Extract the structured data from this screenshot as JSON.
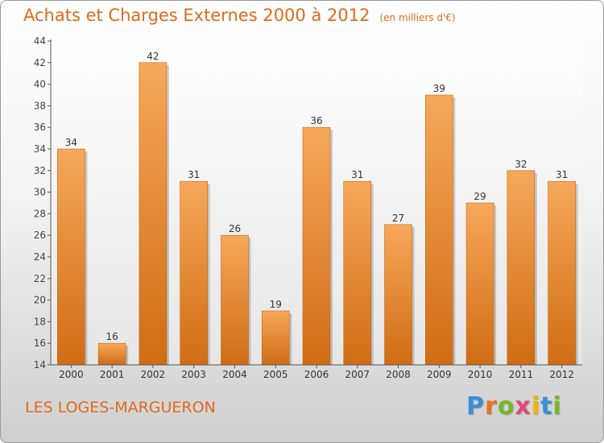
{
  "header": {
    "title": "Achats et Charges Externes 2000 à 2012",
    "unit": "(en milliers d'€)"
  },
  "footer": {
    "city": "LES LOGES-MARGUERON",
    "logo": {
      "letters": [
        {
          "char": "P",
          "color": "#3a8fd6"
        },
        {
          "char": "r",
          "color": "#e8731c"
        },
        {
          "char": "o",
          "color": "#76b82a"
        },
        {
          "char": "x",
          "color": "#e04a7a"
        },
        {
          "char": "i",
          "color": "#f0b400"
        },
        {
          "char": "t",
          "color": "#3a8fd6"
        },
        {
          "char": "i",
          "color": "#76b82a"
        }
      ]
    }
  },
  "chart_data": {
    "type": "bar",
    "categories": [
      "2000",
      "2001",
      "2002",
      "2003",
      "2004",
      "2005",
      "2006",
      "2007",
      "2008",
      "2009",
      "2010",
      "2011",
      "2012"
    ],
    "values": [
      34,
      16,
      42,
      31,
      26,
      19,
      36,
      31,
      27,
      39,
      29,
      32,
      31
    ],
    "ylim": [
      14,
      44
    ],
    "yticks": [
      14,
      16,
      18,
      20,
      22,
      24,
      26,
      28,
      30,
      32,
      34,
      36,
      38,
      40,
      42,
      44
    ],
    "grid": false,
    "legend": "none",
    "colors": {
      "bar_light": "#f7a85a",
      "bar_dark": "#d06c14",
      "title": "#e06a1a"
    }
  }
}
